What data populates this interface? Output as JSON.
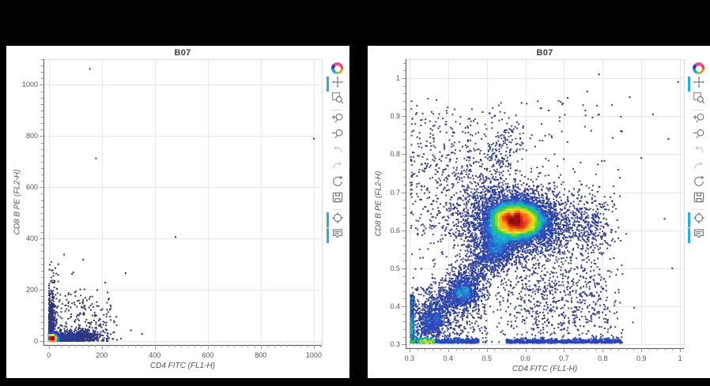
{
  "app": {
    "background": "#000000",
    "panel_background": "#ffffff"
  },
  "toolbar": {
    "accent": "#29abe2",
    "icon_color": "#7b7b7b",
    "disabled_icon_color": "#c8c8c8",
    "items": [
      {
        "icon": "bokeh-logo",
        "active": false,
        "enabled": true
      },
      {
        "icon": "pan",
        "active": true,
        "enabled": true
      },
      {
        "icon": "box-zoom",
        "active": false,
        "enabled": true
      },
      {
        "divider": true
      },
      {
        "icon": "zoom-in",
        "active": false,
        "enabled": true
      },
      {
        "icon": "zoom-out",
        "active": false,
        "enabled": true
      },
      {
        "icon": "undo",
        "active": false,
        "enabled": false
      },
      {
        "icon": "redo",
        "active": false,
        "enabled": false
      },
      {
        "icon": "reset",
        "active": false,
        "enabled": true
      },
      {
        "icon": "save",
        "active": false,
        "enabled": true
      },
      {
        "divider": true
      },
      {
        "icon": "crosshair",
        "active": true,
        "enabled": true
      },
      {
        "icon": "hover",
        "active": true,
        "enabled": true
      }
    ]
  },
  "plot_style": {
    "grid_color": "#e7e7e7",
    "frame_color": "#dcdcdc",
    "axis_line_color": "#555555",
    "tick_color": "#9a9a9a",
    "tick_label_color": "#555555",
    "axis_label_color": "#555555",
    "title_color": "#3c3c3c",
    "sparse_point_color": "#2c2c60",
    "density_exponent": 0.6,
    "colormap": [
      [
        0.0,
        "#2c2c60"
      ],
      [
        0.34,
        "#2b4bc0"
      ],
      [
        0.48,
        "#17b3d8"
      ],
      [
        0.6,
        "#2ecc40"
      ],
      [
        0.72,
        "#f5e626"
      ],
      [
        0.82,
        "#ff9015"
      ],
      [
        0.91,
        "#e62e1f"
      ],
      [
        1.0,
        "#8f0d0d"
      ]
    ]
  },
  "chart_data": [
    {
      "type": "density-scatter",
      "title": "B07",
      "xlabel": "CD4 FITC (FL1-H)",
      "ylabel": "CD8 B PE (FL2-H)",
      "x_range": [
        -20,
        1030
      ],
      "y_range": [
        -15,
        1100
      ],
      "x_ticks": {
        "values": [
          0,
          200,
          400,
          600,
          800,
          1000
        ],
        "labels": [
          "0",
          "200",
          "400",
          "600",
          "800",
          "1000"
        ]
      },
      "y_ticks": {
        "values": [
          0,
          200,
          400,
          600,
          800,
          1000
        ],
        "labels": [
          "0",
          "200",
          "400",
          "600",
          "800",
          "1000"
        ]
      },
      "minor_step_x": 25,
      "minor_step_y": 25,
      "seed": 11,
      "edge_mode": "reflect",
      "clusters": [
        {
          "kind": "gauss",
          "cx": 12,
          "cy": 10,
          "sx": 9,
          "sy": 7,
          "n": 2600
        },
        {
          "kind": "gauss",
          "cx": 50,
          "cy": 13,
          "sx": 42,
          "sy": 10,
          "n": 800
        },
        {
          "kind": "gauss",
          "cx": 120,
          "cy": 16,
          "sx": 52,
          "sy": 13,
          "n": 400
        },
        {
          "kind": "gauss",
          "cx": 8,
          "cy": 62,
          "sx": 8,
          "sy": 46,
          "n": 320
        },
        {
          "kind": "gauss",
          "cx": 12,
          "cy": 170,
          "sx": 12,
          "sy": 62,
          "n": 90
        },
        {
          "kind": "gauss",
          "cx": 82,
          "cy": 110,
          "sx": 55,
          "sy": 60,
          "n": 70
        },
        {
          "kind": "gauss",
          "cx": 165,
          "cy": 55,
          "sx": 45,
          "sy": 30,
          "n": 60
        },
        {
          "kind": "uniform",
          "x0": 2,
          "x1": 235,
          "y0": 2,
          "y1": 185,
          "n": 110
        }
      ],
      "outliers": [
        [
          155,
          1062
        ],
        [
          178,
          713
        ],
        [
          478,
          406
        ],
        [
          1000,
          790
        ],
        [
          290,
          265
        ],
        [
          213,
          228
        ],
        [
          152,
          131
        ],
        [
          88,
          262
        ],
        [
          183,
          199
        ],
        [
          255,
          95
        ],
        [
          310,
          42
        ],
        [
          222,
          190
        ],
        [
          352,
          28
        ],
        [
          130,
          318
        ],
        [
          58,
          338
        ],
        [
          36,
          300
        ]
      ],
      "markers": []
    },
    {
      "type": "density-scatter",
      "title": "B07",
      "xlabel": "CD4 FITC (FL1-H)",
      "ylabel": "CD8 B PE (FL2-H)",
      "x_range": [
        0.29,
        1.01
      ],
      "y_range": [
        0.29,
        1.05
      ],
      "x_ticks": {
        "values": [
          0.3,
          0.4,
          0.5,
          0.6,
          0.7,
          0.8,
          0.9,
          1.0
        ],
        "labels": [
          "0.3",
          "0.4",
          "0.5",
          "0.6",
          "0.7",
          "0.8",
          "0.9",
          "1"
        ]
      },
      "y_ticks": {
        "values": [
          0.3,
          0.4,
          0.5,
          0.6,
          0.7,
          0.8,
          0.9,
          1.0
        ],
        "labels": [
          "0.3",
          "0.4",
          "0.5",
          "0.6",
          "0.7",
          "0.8",
          "0.9",
          "1"
        ]
      },
      "minor_step_x": 0.02,
      "minor_step_y": 0.02,
      "seed": 42,
      "edge_mode": "clamp",
      "clusters": [
        {
          "kind": "gauss",
          "cx": 0.575,
          "cy": 0.625,
          "sx": 0.038,
          "sy": 0.025,
          "n": 6500
        },
        {
          "kind": "gauss",
          "cx": 0.57,
          "cy": 0.62,
          "sx": 0.075,
          "sy": 0.05,
          "n": 2600
        },
        {
          "kind": "band",
          "x1": 0.315,
          "y1": 0.325,
          "x2": 0.55,
          "y2": 0.565,
          "w": 0.026,
          "n": 1600
        },
        {
          "kind": "gauss",
          "cx": 0.44,
          "cy": 0.435,
          "sx": 0.02,
          "sy": 0.02,
          "n": 500
        },
        {
          "kind": "gauss",
          "cx": 0.36,
          "cy": 0.36,
          "sx": 0.018,
          "sy": 0.018,
          "n": 260
        },
        {
          "kind": "gauss",
          "cx": 0.52,
          "cy": 0.56,
          "sx": 0.025,
          "sy": 0.022,
          "n": 520
        },
        {
          "kind": "band",
          "x1": 0.5,
          "y1": 0.68,
          "x2": 0.56,
          "y2": 0.88,
          "w": 0.025,
          "n": 230
        },
        {
          "kind": "gauss",
          "cx": 0.42,
          "cy": 0.75,
          "sx": 0.09,
          "sy": 0.085,
          "n": 240
        },
        {
          "kind": "uniform",
          "x0": 0.305,
          "x1": 0.48,
          "y0": 0.58,
          "y1": 0.92,
          "n": 200
        },
        {
          "kind": "gauss",
          "cx": 0.77,
          "cy": 0.615,
          "sx": 0.033,
          "sy": 0.042,
          "n": 300
        },
        {
          "kind": "gauss",
          "cx": 0.68,
          "cy": 0.6,
          "sx": 0.05,
          "sy": 0.05,
          "n": 230
        },
        {
          "kind": "gauss",
          "cx": 0.66,
          "cy": 0.41,
          "sx": 0.09,
          "sy": 0.06,
          "n": 330
        },
        {
          "kind": "uniform",
          "x0": 0.305,
          "x1": 0.5,
          "y0": 0.305,
          "y1": 0.45,
          "n": 430
        },
        {
          "kind": "uniform",
          "x0": 0.55,
          "x1": 0.82,
          "y0": 0.31,
          "y1": 0.5,
          "n": 300
        },
        {
          "kind": "uniform",
          "x0": 0.3,
          "x1": 0.85,
          "y0": 0.31,
          "y1": 0.95,
          "n": 380
        },
        {
          "kind": "hstrip",
          "x0": 0.303,
          "x1": 0.48,
          "y": 0.307,
          "jitter": 0.004,
          "n": 650,
          "tmax": 0.3
        },
        {
          "kind": "hstrip",
          "x0": 0.325,
          "x1": 0.365,
          "y": 0.307,
          "jitter": 0.003,
          "n": 240,
          "tmax": 0.55
        },
        {
          "kind": "hstrip",
          "x0": 0.55,
          "x1": 0.85,
          "y": 0.307,
          "jitter": 0.004,
          "n": 800,
          "tmax": 0.3
        },
        {
          "kind": "vstrip",
          "x": 0.306,
          "y0": 0.303,
          "y1": 0.43,
          "jitter": 0.003,
          "n": 500,
          "tmax": 0.22
        }
      ],
      "outliers": [
        [
          0.79,
          1.01
        ],
        [
          0.995,
          0.99
        ],
        [
          0.93,
          0.905
        ],
        [
          0.87,
          0.95
        ],
        [
          0.76,
          0.965
        ],
        [
          0.59,
          0.935
        ],
        [
          0.52,
          0.9
        ],
        [
          0.97,
          0.84
        ],
        [
          0.9,
          0.79
        ],
        [
          0.85,
          0.86
        ],
        [
          0.66,
          0.915
        ],
        [
          0.96,
          0.63
        ],
        [
          0.98,
          0.5
        ]
      ],
      "markers": [
        {
          "x": 0.306,
          "y": 0.305,
          "color": "#2bd12b",
          "size": 3.5
        }
      ]
    }
  ]
}
